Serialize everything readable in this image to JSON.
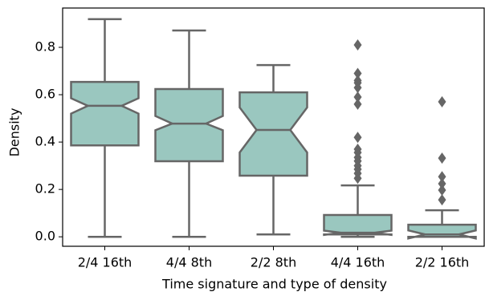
{
  "chart_data": {
    "type": "box",
    "xlabel": "Time signature and type of density",
    "ylabel": "Density",
    "categories": [
      "2/4 16th",
      "4/4 8th",
      "2/2 8th",
      "4/4 16th",
      "2/2 16th"
    ],
    "color": "#9ac7bf",
    "edge_color": "#666666",
    "boxes": [
      {
        "whislo": 0,
        "q1": 0.386,
        "med": 0.553,
        "q3": 0.654,
        "whishi": 0.919,
        "notch": [
          0.52,
          0.585
        ],
        "fliers": []
      },
      {
        "whislo": 0,
        "q1": 0.319,
        "med": 0.478,
        "q3": 0.624,
        "whishi": 0.871,
        "notch": [
          0.45,
          0.51
        ],
        "fliers": []
      },
      {
        "whislo": 0.01,
        "q1": 0.258,
        "med": 0.451,
        "q3": 0.61,
        "whishi": 0.725,
        "notch": [
          0.356,
          0.546
        ],
        "fliers": []
      },
      {
        "whislo": 0,
        "q1": 0.01,
        "med": 0.017,
        "q3": 0.092,
        "whishi": 0.217,
        "notch": [
          0.008,
          0.026
        ],
        "fliers": [
          0.81,
          0.69,
          0.66,
          0.65,
          0.63,
          0.59,
          0.56,
          0.42,
          0.37,
          0.356,
          0.335,
          0.32,
          0.3,
          0.285,
          0.268,
          0.247
        ]
      },
      {
        "whislo": 0,
        "q1": 0,
        "med": 0.01,
        "q3": 0.051,
        "whishi": 0.112,
        "notch": [
          -0.007,
          0.027
        ],
        "fliers": [
          0.57,
          0.332,
          0.254,
          0.224,
          0.197,
          0.156
        ]
      }
    ],
    "ylim": [
      -0.04,
      0.966
    ],
    "yticks": [
      {
        "value": 0,
        "label": "0.0"
      },
      0.2,
      0.4,
      0.6,
      0.8
    ]
  }
}
